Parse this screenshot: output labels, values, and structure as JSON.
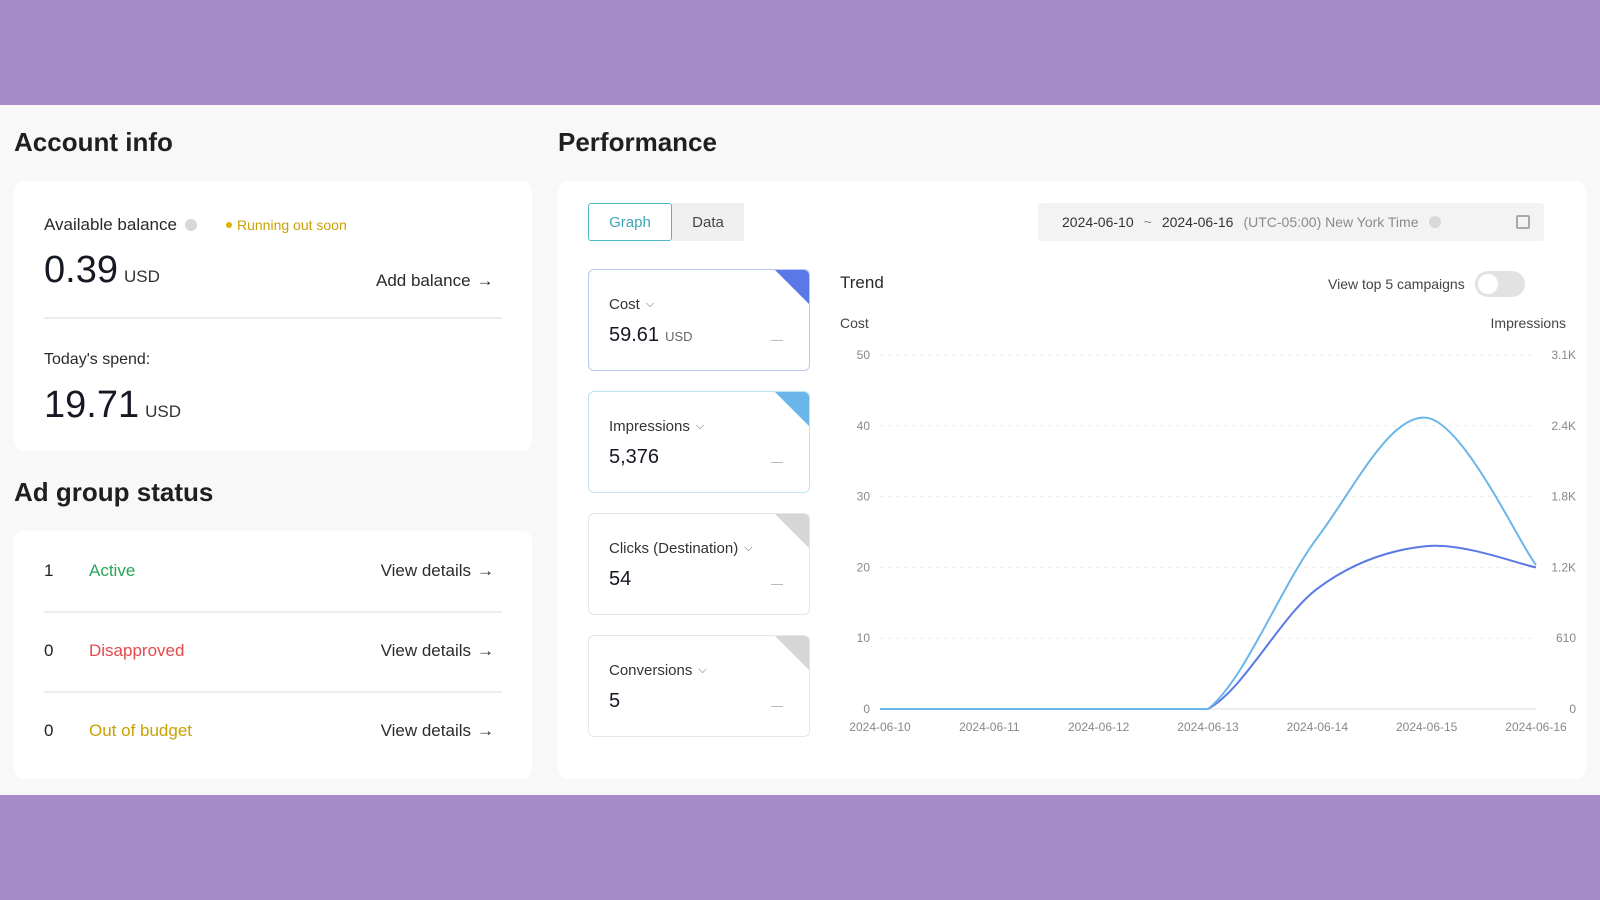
{
  "account": {
    "title": "Account info",
    "balance_label": "Available balance",
    "warning": "Running out soon",
    "balance_value": "0.39",
    "balance_unit": "USD",
    "add_balance": "Add balance",
    "spend_label": "Today's spend:",
    "spend_value": "19.71",
    "spend_unit": "USD"
  },
  "adgroup": {
    "title": "Ad group status",
    "rows": [
      {
        "count": "1",
        "status": "Active",
        "color": "#2aa45a",
        "action": "View details"
      },
      {
        "count": "0",
        "status": "Disapproved",
        "color": "#e5484d",
        "action": "View details"
      },
      {
        "count": "0",
        "status": "Out of budget",
        "color": "#c9a100",
        "action": "View details"
      }
    ]
  },
  "performance": {
    "title": "Performance",
    "tabs": [
      {
        "label": "Graph",
        "active": true
      },
      {
        "label": "Data",
        "active": false
      }
    ],
    "date_start": "2024-06-10",
    "date_sep": "~",
    "date_end": "2024-06-16",
    "timezone": "(UTC-05:00) New York Time",
    "metrics": [
      {
        "label": "Cost",
        "value": "59.61",
        "unit": "USD",
        "selected_color": "#5a79e6"
      },
      {
        "label": "Impressions",
        "value": "5,376",
        "unit": "",
        "selected_color": "#6ab6ea"
      },
      {
        "label": "Clicks (Destination)",
        "value": "54",
        "unit": ""
      },
      {
        "label": "Conversions",
        "value": "5",
        "unit": ""
      }
    ],
    "trend_title": "Trend",
    "toggle_label": "View top 5 campaigns",
    "chart_data": {
      "type": "line",
      "x": [
        "2024-06-10",
        "2024-06-11",
        "2024-06-12",
        "2024-06-13",
        "2024-06-14",
        "2024-06-15",
        "2024-06-16"
      ],
      "ylabel": "Cost",
      "y2label": "Impressions",
      "ylim": [
        0,
        50
      ],
      "yticks": [
        "50",
        "40",
        "30",
        "20",
        "10",
        "0"
      ],
      "y2lim": [
        0,
        3100
      ],
      "y2ticks": [
        "3.1K",
        "2.4K",
        "1.8K",
        "1.2K",
        "610",
        "0"
      ],
      "grid": true,
      "series": [
        {
          "axis": "left",
          "color": "#5a79e6",
          "values": [
            0,
            0,
            0,
            0,
            17,
            23,
            20
          ]
        },
        {
          "axis": "right",
          "color": "#6ab6ea",
          "values": [
            0,
            0,
            0,
            0,
            1500,
            2550,
            1260
          ]
        }
      ]
    }
  }
}
